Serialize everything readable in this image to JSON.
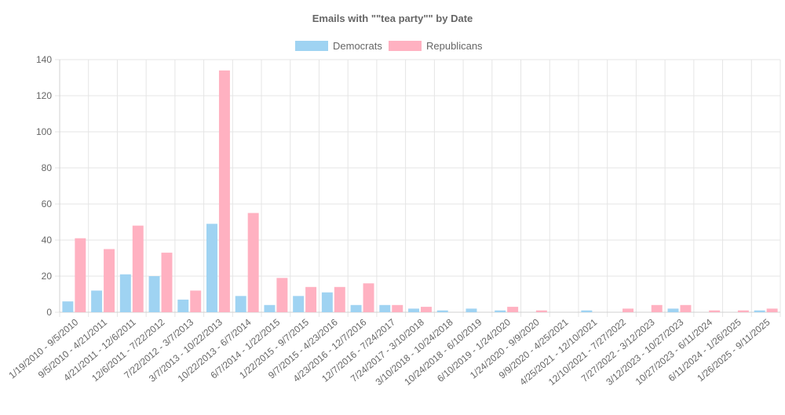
{
  "chart_data": {
    "type": "bar",
    "title": "Emails with \"\"tea party\"\" by Date",
    "xlabel": "",
    "ylabel": "",
    "ylim": [
      0,
      140
    ],
    "yticks": [
      0,
      20,
      40,
      60,
      80,
      100,
      120,
      140
    ],
    "grid": true,
    "legend_position": "top",
    "categories": [
      "1/19/2010 - 9/5/2010",
      "9/5/2010 - 4/21/2011",
      "4/21/2011 - 12/6/2011",
      "12/6/2011 - 7/22/2012",
      "7/22/2012 - 3/7/2013",
      "3/7/2013 - 10/22/2013",
      "10/22/2013 - 6/7/2014",
      "6/7/2014 - 1/22/2015",
      "1/22/2015 - 9/7/2015",
      "9/7/2015 - 4/23/2016",
      "4/23/2016 - 12/7/2016",
      "12/7/2016 - 7/24/2017",
      "7/24/2017 - 3/10/2018",
      "3/10/2018 - 10/24/2018",
      "10/24/2018 - 6/10/2019",
      "6/10/2019 - 1/24/2020",
      "1/24/2020 - 9/9/2020",
      "9/9/2020 - 4/25/2021",
      "4/25/2021 - 12/10/2021",
      "12/10/2021 - 7/27/2022",
      "7/27/2022 - 3/12/2023",
      "3/12/2023 - 10/27/2023",
      "10/27/2023 - 6/11/2024",
      "6/11/2024 - 1/26/2025",
      "1/26/2025 - 9/11/2025"
    ],
    "series": [
      {
        "name": "Democrats",
        "color": "#9fd3f2",
        "values": [
          6,
          12,
          21,
          20,
          7,
          49,
          9,
          4,
          9,
          11,
          4,
          4,
          2,
          1,
          2,
          1,
          0,
          0,
          1,
          0,
          0,
          2,
          0,
          0,
          1
        ]
      },
      {
        "name": "Republicans",
        "color": "#ffb1c1",
        "values": [
          41,
          35,
          48,
          33,
          12,
          134,
          55,
          19,
          14,
          14,
          16,
          4,
          3,
          0,
          0,
          3,
          1,
          0,
          0,
          2,
          4,
          4,
          1,
          1,
          2
        ]
      }
    ]
  }
}
